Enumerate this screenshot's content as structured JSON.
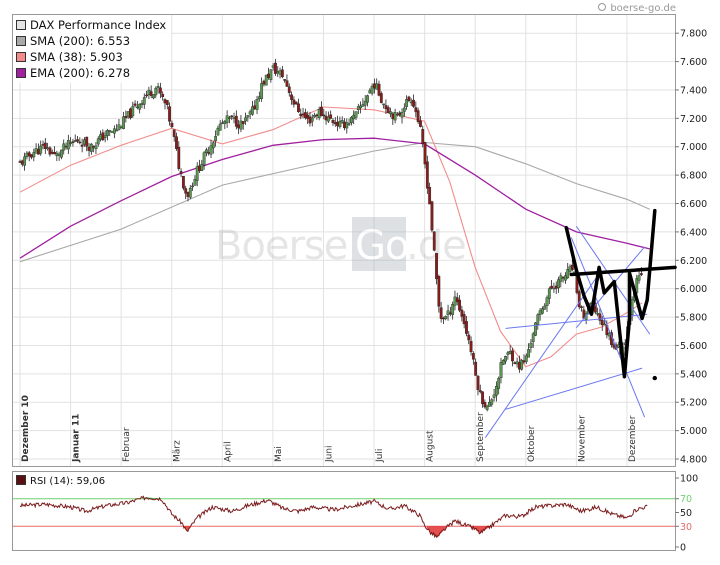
{
  "source_label": "boerse-go.de",
  "watermark": {
    "left": "Boerse",
    "box": "Go",
    "right": ".de"
  },
  "colors": {
    "candle_up": "#5a9a50",
    "candle_down": "#8b1c1c",
    "sma200": "#a8a8a8",
    "sma38": "#f28c8c",
    "ema200": "#a020a0",
    "trend_blue": "#6a78f0",
    "drawing": "#000000",
    "rsi_line": "#7a1c1c",
    "rsi_overbought_line": "#6fd06f",
    "rsi_oversold_line": "#e86a6a",
    "rsi_overbought_fill": "#3a9a3a",
    "rsi_oversold_fill": "#e03030"
  },
  "chart_data": [
    {
      "type": "candlestick",
      "legend": [
        {
          "label": "DAX Performance Index",
          "color": "#e4e4e4"
        },
        {
          "label": "SMA (200): 6.553",
          "color": "#a8a8a8"
        },
        {
          "label": "SMA (38): 5.903",
          "color": "#f28c8c"
        },
        {
          "label": "EMA (200): 6.278",
          "color": "#a020a0"
        }
      ],
      "legend_position": "top-left",
      "ylim": [
        4800,
        7900
      ],
      "yticks": [
        4800,
        5000,
        5200,
        5400,
        5600,
        5800,
        6000,
        6200,
        6400,
        6600,
        6800,
        7000,
        7200,
        7400,
        7600,
        7800
      ],
      "ytick_labels": [
        "4.800",
        "5.000",
        "5.200",
        "5.400",
        "5.600",
        "5.800",
        "6.000",
        "6.200",
        "6.400",
        "6.600",
        "6.800",
        "7.000",
        "7.200",
        "7.400",
        "7.600",
        "7.800"
      ],
      "x_labels": [
        {
          "label": "Dezember 10",
          "bold": true,
          "month": 0
        },
        {
          "label": "Januar 11",
          "bold": true,
          "month": 1
        },
        {
          "label": "Februar",
          "bold": false,
          "month": 2
        },
        {
          "label": "März",
          "bold": false,
          "month": 3
        },
        {
          "label": "April",
          "bold": false,
          "month": 4
        },
        {
          "label": "Mai",
          "bold": false,
          "month": 5
        },
        {
          "label": "Juni",
          "bold": false,
          "month": 6
        },
        {
          "label": "Juli",
          "bold": false,
          "month": 7
        },
        {
          "label": "August",
          "bold": false,
          "month": 8
        },
        {
          "label": "September",
          "bold": false,
          "month": 9
        },
        {
          "label": "Oktober",
          "bold": false,
          "month": 10
        },
        {
          "label": "November",
          "bold": false,
          "month": 11
        },
        {
          "label": "Dezember",
          "bold": false,
          "month": 12
        }
      ],
      "x_range_months": [
        0,
        12.95
      ],
      "close_path": [
        [
          0.0,
          6880
        ],
        [
          0.25,
          6960
        ],
        [
          0.5,
          7000
        ],
        [
          0.7,
          6930
        ],
        [
          0.9,
          7000
        ],
        [
          1.15,
          7050
        ],
        [
          1.4,
          7000
        ],
        [
          1.7,
          7090
        ],
        [
          1.9,
          7120
        ],
        [
          2.15,
          7220
        ],
        [
          2.45,
          7350
        ],
        [
          2.7,
          7420
        ],
        [
          2.9,
          7280
        ],
        [
          3.05,
          7050
        ],
        [
          3.15,
          6850
        ],
        [
          3.3,
          6650
        ],
        [
          3.5,
          6830
        ],
        [
          3.75,
          7000
        ],
        [
          3.95,
          7150
        ],
        [
          4.15,
          7200
        ],
        [
          4.4,
          7150
        ],
        [
          4.6,
          7250
        ],
        [
          4.8,
          7450
        ],
        [
          5.0,
          7550
        ],
        [
          5.2,
          7500
        ],
        [
          5.45,
          7280
        ],
        [
          5.7,
          7180
        ],
        [
          5.9,
          7250
        ],
        [
          6.1,
          7200
        ],
        [
          6.35,
          7150
        ],
        [
          6.6,
          7200
        ],
        [
          6.85,
          7350
        ],
        [
          7.0,
          7450
        ],
        [
          7.2,
          7300
        ],
        [
          7.45,
          7200
        ],
        [
          7.6,
          7300
        ],
        [
          7.75,
          7350
        ],
        [
          7.9,
          7150
        ],
        [
          8.0,
          6900
        ],
        [
          8.1,
          6600
        ],
        [
          8.2,
          6200
        ],
        [
          8.3,
          5800
        ],
        [
          8.45,
          5800
        ],
        [
          8.6,
          5950
        ],
        [
          8.75,
          5800
        ],
        [
          8.9,
          5600
        ],
        [
          9.0,
          5400
        ],
        [
          9.1,
          5250
        ],
        [
          9.25,
          5150
        ],
        [
          9.4,
          5300
        ],
        [
          9.55,
          5500
        ],
        [
          9.7,
          5550
        ],
        [
          9.85,
          5450
        ],
        [
          10.0,
          5500
        ],
        [
          10.15,
          5700
        ],
        [
          10.3,
          5850
        ],
        [
          10.5,
          6000
        ],
        [
          10.65,
          6050
        ],
        [
          10.8,
          6100
        ],
        [
          10.95,
          6150
        ],
        [
          11.0,
          5950
        ],
        [
          11.15,
          5800
        ],
        [
          11.3,
          5900
        ],
        [
          11.45,
          5800
        ],
        [
          11.6,
          5700
        ],
        [
          11.75,
          5600
        ],
        [
          11.9,
          5560
        ],
        [
          12.0,
          5700
        ],
        [
          12.1,
          5950
        ],
        [
          12.2,
          6050
        ],
        [
          12.3,
          6100
        ]
      ],
      "series": [
        {
          "name": "SMA (200)",
          "values": [
            [
              0,
              6190
            ],
            [
              2,
              6420
            ],
            [
              4,
              6730
            ],
            [
              5.5,
              6850
            ],
            [
              7,
              6970
            ],
            [
              8,
              7030
            ],
            [
              9,
              7000
            ],
            [
              10,
              6880
            ],
            [
              11,
              6740
            ],
            [
              12,
              6630
            ],
            [
              12.45,
              6560
            ]
          ]
        },
        {
          "name": "SMA (38)",
          "values": [
            [
              0,
              6680
            ],
            [
              1,
              6870
            ],
            [
              2,
              7010
            ],
            [
              3,
              7130
            ],
            [
              4,
              7020
            ],
            [
              5,
              7120
            ],
            [
              6,
              7280
            ],
            [
              7,
              7260
            ],
            [
              8,
              7180
            ],
            [
              8.5,
              6750
            ],
            [
              9,
              6150
            ],
            [
              9.5,
              5700
            ],
            [
              10,
              5450
            ],
            [
              10.5,
              5520
            ],
            [
              11,
              5680
            ],
            [
              11.5,
              5730
            ],
            [
              12,
              5830
            ],
            [
              12.3,
              5900
            ]
          ]
        },
        {
          "name": "EMA (200)",
          "values": [
            [
              0,
              6215
            ],
            [
              1,
              6440
            ],
            [
              2,
              6620
            ],
            [
              3,
              6790
            ],
            [
              4,
              6910
            ],
            [
              5,
              7010
            ],
            [
              6,
              7050
            ],
            [
              7,
              7060
            ],
            [
              8,
              7020
            ],
            [
              9,
              6800
            ],
            [
              10,
              6560
            ],
            [
              11,
              6400
            ],
            [
              12,
              6320
            ],
            [
              12.45,
              6280
            ]
          ]
        }
      ],
      "trend_lines": [
        {
          "from": [
            11.0,
            5725
          ],
          "to": [
            12.35,
            6295
          ]
        },
        {
          "from": [
            11.0,
            6440
          ],
          "to": [
            12.45,
            5680
          ]
        },
        {
          "from": [
            10.9,
            6360
          ],
          "to": [
            12.35,
            5095
          ]
        },
        {
          "from": [
            9.2,
            4950
          ],
          "to": [
            11.4,
            6080
          ]
        },
        {
          "from": [
            9.6,
            5150
          ],
          "to": [
            12.3,
            5440
          ]
        },
        {
          "from": [
            9.6,
            5720
          ],
          "to": [
            12.4,
            5820
          ]
        }
      ],
      "hand_drawing": {
        "segments": [
          [
            [
              10.8,
              6430
            ],
            [
              11.0,
              6130
            ],
            [
              11.15,
              5950
            ],
            [
              11.3,
              5820
            ],
            [
              11.45,
              6150
            ],
            [
              11.55,
              5970
            ],
            [
              11.75,
              6050
            ],
            [
              11.95,
              5380
            ],
            [
              12.05,
              5790
            ],
            [
              12.05,
              6110
            ],
            [
              12.3,
              5790
            ],
            [
              12.4,
              5920
            ],
            [
              12.55,
              6550
            ]
          ],
          [
            [
              10.9,
              6100
            ],
            [
              12.95,
              6150
            ]
          ]
        ],
        "dot": [
          12.55,
          5370
        ]
      }
    },
    {
      "type": "line",
      "legend": [
        {
          "label": "RSI (14): 59,06",
          "color": "#5a1010"
        }
      ],
      "legend_position": "top-left",
      "ylim": [
        0,
        100
      ],
      "yticks": [
        0,
        30,
        50,
        70,
        100
      ],
      "ytick_labels": [
        "0",
        "30",
        "50",
        "70",
        "100"
      ],
      "reference_lines": [
        {
          "value": 70,
          "label": "70"
        },
        {
          "value": 30,
          "label": "30"
        }
      ],
      "values": [
        [
          0,
          60
        ],
        [
          0.5,
          62
        ],
        [
          1,
          58
        ],
        [
          1.3,
          52
        ],
        [
          1.7,
          60
        ],
        [
          2.1,
          64
        ],
        [
          2.5,
          72
        ],
        [
          2.8,
          70
        ],
        [
          3.0,
          48
        ],
        [
          3.2,
          35
        ],
        [
          3.3,
          22
        ],
        [
          3.5,
          42
        ],
        [
          3.8,
          58
        ],
        [
          4.2,
          52
        ],
        [
          4.5,
          60
        ],
        [
          4.9,
          68
        ],
        [
          5.2,
          56
        ],
        [
          5.5,
          52
        ],
        [
          5.8,
          58
        ],
        [
          6.2,
          54
        ],
        [
          6.6,
          60
        ],
        [
          7.0,
          66
        ],
        [
          7.3,
          55
        ],
        [
          7.6,
          60
        ],
        [
          7.9,
          46
        ],
        [
          8.0,
          32
        ],
        [
          8.1,
          22
        ],
        [
          8.25,
          14
        ],
        [
          8.4,
          26
        ],
        [
          8.6,
          38
        ],
        [
          8.8,
          32
        ],
        [
          9.0,
          26
        ],
        [
          9.1,
          20
        ],
        [
          9.3,
          30
        ],
        [
          9.6,
          46
        ],
        [
          9.9,
          44
        ],
        [
          10.2,
          58
        ],
        [
          10.5,
          60
        ],
        [
          10.8,
          62
        ],
        [
          11.1,
          52
        ],
        [
          11.4,
          58
        ],
        [
          11.7,
          48
        ],
        [
          12.0,
          42
        ],
        [
          12.2,
          55
        ],
        [
          12.4,
          59
        ]
      ]
    }
  ]
}
